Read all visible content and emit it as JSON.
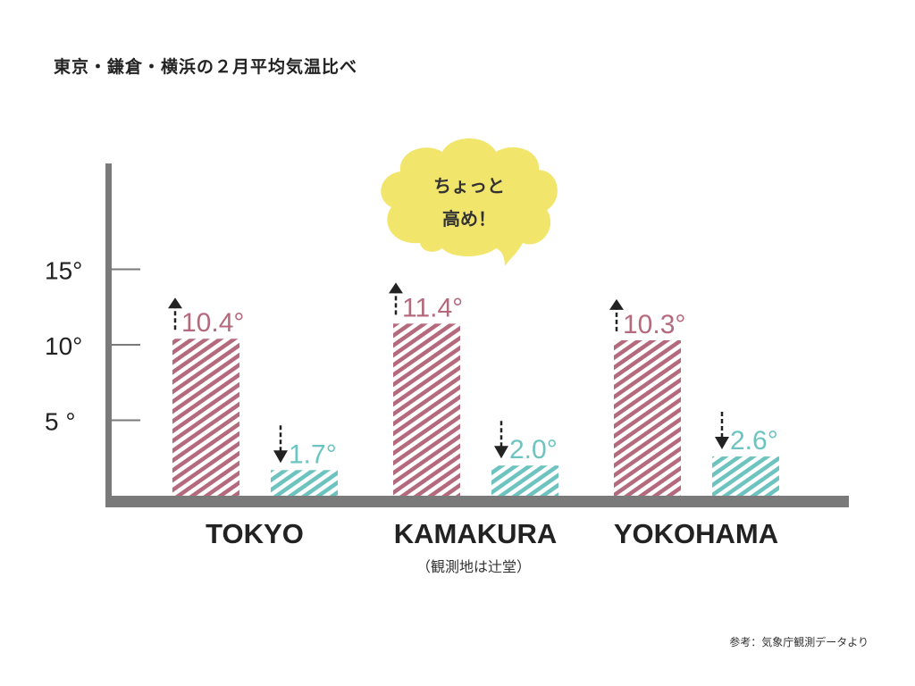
{
  "chart_data": {
    "type": "bar",
    "title": "東京・鎌倉・横浜の２月平均気温比べ",
    "categories": [
      "TOKYO",
      "KAMAKURA",
      "YOKOHAMA"
    ],
    "category_notes": [
      "",
      "（観測地は辻堂）",
      ""
    ],
    "series": [
      {
        "values": [
          10.4,
          11.4,
          10.3
        ],
        "labels": [
          "10.4°",
          "11.4°",
          "10.3°"
        ],
        "color": "#b46a7c",
        "arrow": "up"
      },
      {
        "values": [
          1.7,
          2.0,
          2.6
        ],
        "labels": [
          "1.7°",
          "2.0°",
          "2.6°"
        ],
        "color": "#6cc3bf",
        "arrow": "down"
      }
    ],
    "yticks": [
      5,
      10,
      15
    ],
    "ytick_labels": [
      "5 °",
      "10°",
      "15°"
    ],
    "ylim": [
      0,
      22
    ],
    "bar_pattern": "diagonal-hatch",
    "annotation": {
      "lines": [
        "ちょっと",
        "高め！"
      ],
      "target": "KAMAKURA",
      "color": "#f2e56c"
    },
    "source": "参考：気象庁観測データより",
    "axis_color": "#7a7a7a"
  }
}
